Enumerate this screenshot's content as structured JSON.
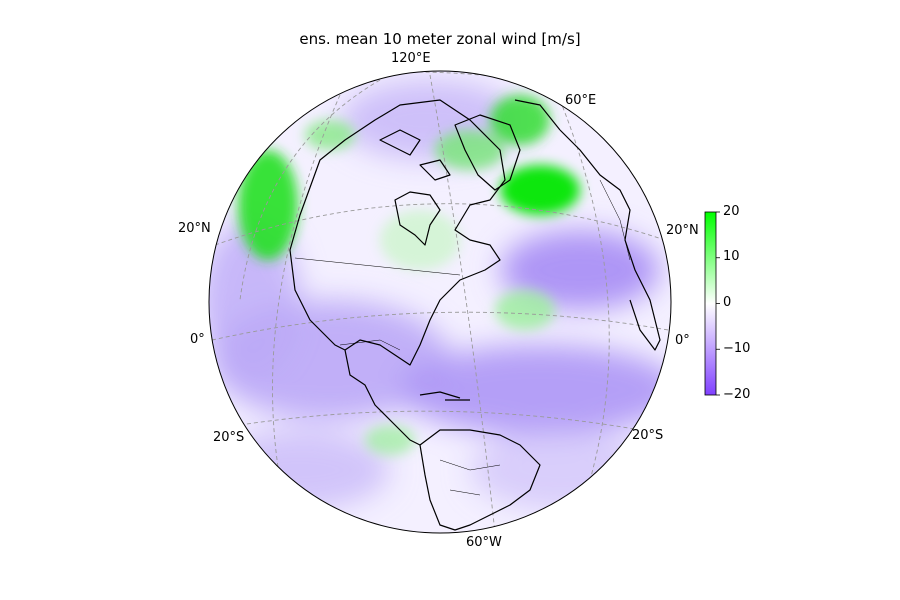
{
  "title": "ens. mean 10 meter zonal wind [m/s]",
  "projection": "orthographic",
  "gridline_labels": {
    "lon_top": "120°E",
    "lon_upper_right": "60°E",
    "lon_bottom": "60°W",
    "lat_20n_left": "20°N",
    "lat_20n_right": "20°N",
    "lat_0_left": "0°",
    "lat_0_right": "0°",
    "lat_20s_left": "20°S",
    "lat_20s_right": "20°S"
  },
  "colorbar": {
    "ticks": [
      "20",
      "10",
      "0",
      "−10",
      "−20"
    ],
    "vmin": -20,
    "vmax": 20,
    "colors": {
      "low": "#8040ff",
      "mid": "#ffffff",
      "high": "#00ff00"
    }
  },
  "colors": {
    "positive_wind": "#33e633",
    "negative_wind": "#a58cf5",
    "coastline": "#000000",
    "gridline": "#999999"
  }
}
